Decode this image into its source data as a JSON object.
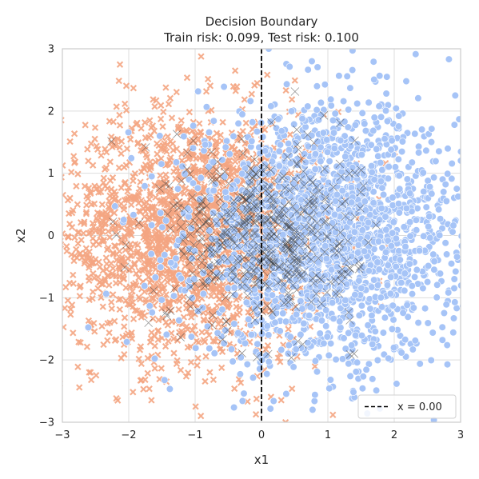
{
  "chart_data": {
    "type": "scatter",
    "title": "Decision Boundary",
    "subtitle": "Train risk: 0.099, Test risk: 0.100",
    "xlabel": "x1",
    "ylabel": "x2",
    "xlim": [
      -3,
      3
    ],
    "ylim": [
      -3,
      3
    ],
    "x_ticks": [
      "−3",
      "−2",
      "−1",
      "0",
      "1",
      "2",
      "3"
    ],
    "y_ticks": [
      "−3",
      "−2",
      "−1",
      "0",
      "1",
      "2",
      "3"
    ],
    "grid": true,
    "legend_position": "lower-right",
    "series": [
      {
        "marker": "x",
        "color": "#f4a582",
        "center": [
          -1.0,
          0.0
        ],
        "spread": 1.0,
        "sample_count": 2200
      },
      {
        "marker": "circle",
        "color": "#a6c4f7",
        "center": [
          1.0,
          0.0
        ],
        "spread": 1.0,
        "sample_count": 2200
      },
      {
        "marker": "x",
        "color": "#3d3d3d",
        "center": [
          0.0,
          0.0
        ],
        "spread": 0.7,
        "sample_count": 500
      }
    ],
    "boundary": {
      "x": 0.0,
      "style": "dashed",
      "color": "#000000",
      "label": "x = 0.00"
    }
  }
}
